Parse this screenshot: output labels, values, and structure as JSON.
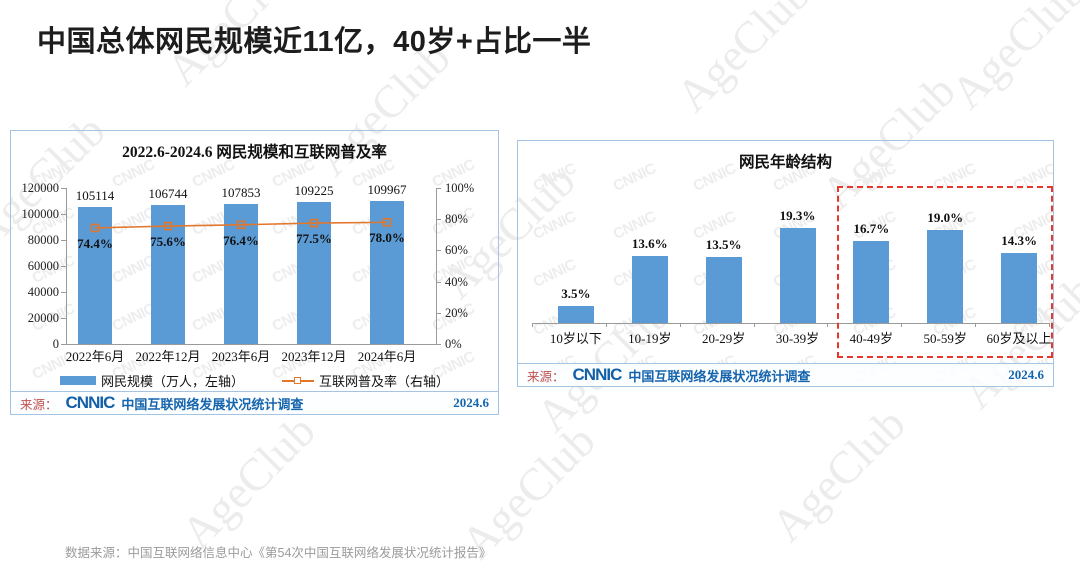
{
  "page": {
    "title": "中国总体网民规模近11亿，40岁+占比一半",
    "footnote": "数据来源：中国互联网络信息中心《第54次中国互联网络发展状况统计报告》"
  },
  "watermarks": {
    "brand": "AgeClub",
    "chart": "CNNIC"
  },
  "colors": {
    "bar_blue": "#5B9BD5",
    "line_orange": "#E2772E",
    "source_blue": "#1565AE",
    "source_red": "#C0504D",
    "highlight_red": "#E8382C",
    "panel_border": "#a4c4e4"
  },
  "chart_data": [
    {
      "type": "bar+line",
      "title": "2022.6-2024.6 网民规模和互联网普及率",
      "categories": [
        "2022年6月",
        "2022年12月",
        "2023年6月",
        "2023年12月",
        "2024年6月"
      ],
      "series": [
        {
          "name": "网民规模（万人，左轴）",
          "type": "bar",
          "axis": "left",
          "color": "#5B9BD5",
          "values": [
            105114,
            106744,
            107853,
            109225,
            109967
          ]
        },
        {
          "name": "互联网普及率（右轴）",
          "type": "line",
          "axis": "right",
          "color": "#E2772E",
          "values": [
            74.4,
            75.6,
            76.4,
            77.5,
            78.0
          ],
          "labels": [
            "74.4%",
            "75.6%",
            "76.4%",
            "77.5%",
            "78.0%"
          ]
        }
      ],
      "left_axis": {
        "min": 0,
        "max": 120000,
        "ticks": [
          "120000",
          "100000",
          "80000",
          "60000",
          "40000",
          "20000",
          "0"
        ]
      },
      "right_axis": {
        "min": 0,
        "max": 100,
        "ticks": [
          "100%",
          "80%",
          "60%",
          "40%",
          "20%",
          "0%"
        ]
      },
      "grid": false,
      "legend_position": "bottom",
      "source": {
        "label": "来源：",
        "logo": "CNNIC",
        "text": "中国互联网络发展状况统计调查",
        "date": "2024.6"
      }
    },
    {
      "type": "bar",
      "title": "网民年龄结构",
      "categories": [
        "10岁以下",
        "10-19岁",
        "20-29岁",
        "30-39岁",
        "40-49岁",
        "50-59岁",
        "60岁及以上"
      ],
      "values": [
        3.5,
        13.6,
        13.5,
        19.3,
        16.7,
        19.0,
        14.3
      ],
      "labels": [
        "3.5%",
        "13.6%",
        "13.5%",
        "19.3%",
        "16.7%",
        "19.0%",
        "14.3%"
      ],
      "ylim": [
        0,
        22
      ],
      "xlabel": "",
      "ylabel": "",
      "grid": false,
      "highlight": {
        "categories": [
          "40-49岁",
          "50-59岁",
          "60岁及以上"
        ],
        "style": "red-dashed-box"
      },
      "source": {
        "label": "来源：",
        "logo": "CNNIC",
        "text": "中国互联网络发展状况统计调查",
        "date": "2024.6"
      }
    }
  ]
}
